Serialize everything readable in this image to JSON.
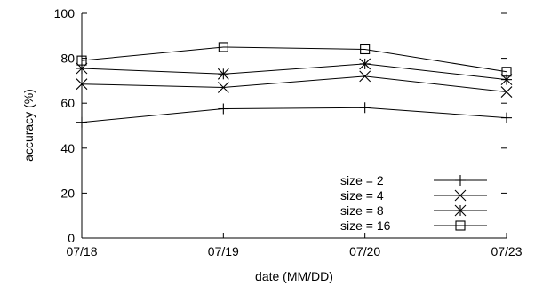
{
  "chart_data": {
    "type": "line",
    "title": "",
    "xlabel": "date (MM/DD)",
    "ylabel": "accuracy (%)",
    "categories": [
      "07/18",
      "07/19",
      "07/20",
      "07/23"
    ],
    "ylim": [
      0,
      100
    ],
    "yticks": [
      "0",
      "20",
      "40",
      "60",
      "80",
      "100"
    ],
    "grid": false,
    "legend_position": "bottom-right",
    "series": [
      {
        "name": "size = 2",
        "marker": "plus",
        "values": [
          51.5,
          57.5,
          58.0,
          53.5
        ]
      },
      {
        "name": "size = 4",
        "marker": "cross",
        "values": [
          68.5,
          67.0,
          72.0,
          65.0
        ]
      },
      {
        "name": "size = 8",
        "marker": "star",
        "values": [
          75.5,
          73.0,
          77.5,
          70.5
        ]
      },
      {
        "name": "size = 16",
        "marker": "square",
        "values": [
          79.0,
          85.0,
          84.0,
          74.0
        ]
      }
    ]
  }
}
